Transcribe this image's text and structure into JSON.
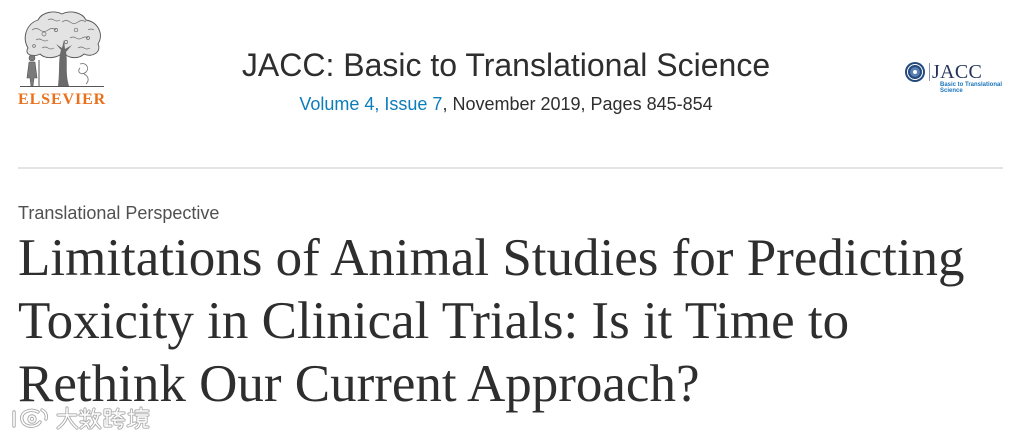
{
  "publisher": {
    "logo_text": "ELSEVIER",
    "logo_icon": "elsevier-tree-icon"
  },
  "journal": {
    "title": "JACC: Basic to Translational Science",
    "issue_link": "Volume 4, Issue 7",
    "issue_details": ", November 2019, Pages 845-854"
  },
  "journal_logo": {
    "icon": "jacc-seal-icon",
    "wordmark": "JACC",
    "subtitle_line1": "Basic to Translational",
    "subtitle_line2": "Science"
  },
  "article": {
    "type": "Translational Perspective",
    "title_lines": [
      "Limitations of Animal Studies for Predicting",
      "Toxicity in Clinical Trials: Is it Time to",
      "Rethink Our Current Approach?"
    ]
  },
  "watermark": {
    "icon": "watermark-logo-icon",
    "text": "大数跨境"
  },
  "colors": {
    "text": "#2e2e2e",
    "muted": "#505050",
    "link": "#0c7dbb",
    "brand_orange": "#e9711c",
    "jacc_blue": "#1b75bb",
    "jacc_navy": "#23345a",
    "divider": "#e4e4e4"
  }
}
